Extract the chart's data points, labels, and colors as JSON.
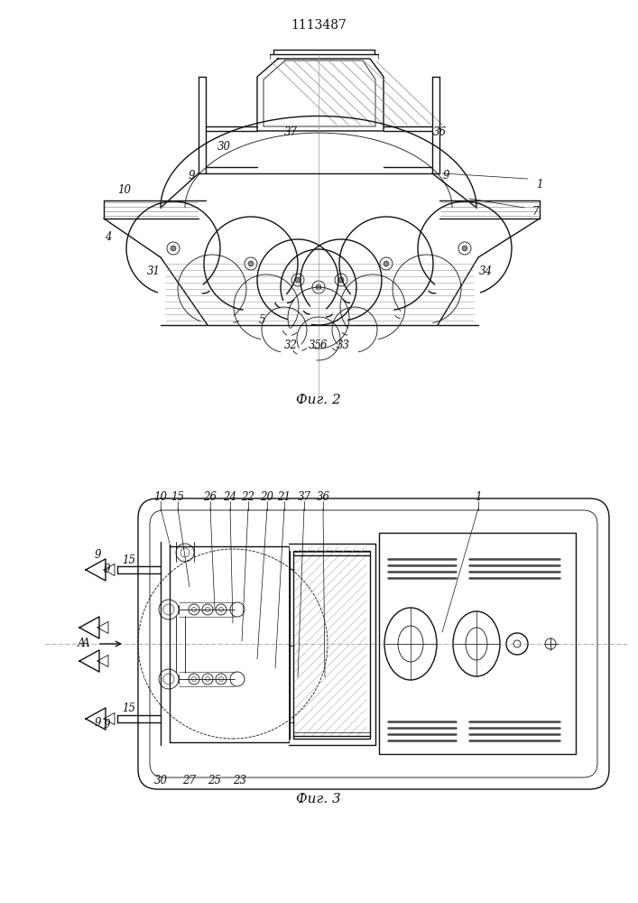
{
  "bg_color": "#ffffff",
  "line_color": "#111111",
  "title_text": "1113487",
  "fig2_caption": "Фиг. 2",
  "fig3_caption": "Фиг. 3",
  "title_fontsize": 10,
  "caption_fontsize": 11,
  "label_fontsize": 8.5
}
